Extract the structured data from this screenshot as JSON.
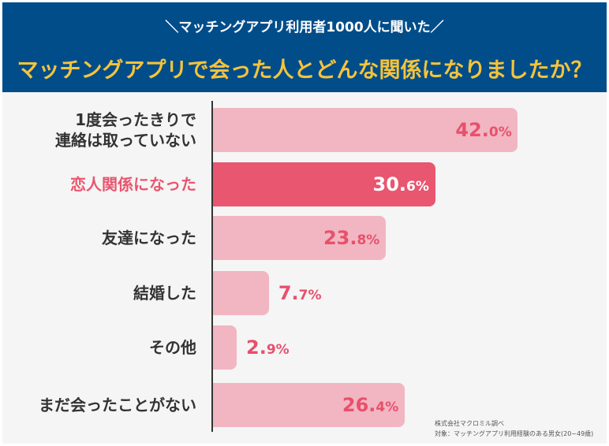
{
  "header": {
    "subtitle": "＼マッチングアプリ利用者1000人に聞いた／",
    "title": "マッチングアプリで会った人とどんな関係になりましたか？"
  },
  "colors": {
    "header_bg": "#014d8a",
    "title": "#f5c33b",
    "bar": "#f1b6c2",
    "bar_highlight": "#e8566f",
    "value_text": "#e8506c"
  },
  "chart_data": {
    "type": "bar",
    "orientation": "horizontal",
    "categories": [
      "1度会ったきりで\n連絡は取っていない",
      "恋人関係になった",
      "友達になった",
      "結婚した",
      "その他",
      "まだ会ったことがない"
    ],
    "values": [
      42.0,
      30.6,
      23.8,
      7.7,
      2.9,
      26.4
    ],
    "value_labels": [
      "42.0%",
      "30.6%",
      "23.8%",
      "7.7%",
      "2.9%",
      "26.4%"
    ],
    "highlight_index": 1,
    "unit": "%"
  },
  "footnote": {
    "source": "株式会社マクロミル調べ",
    "target": "対象：マッチングアプリ利用経験のある男女(20~49歳)"
  }
}
